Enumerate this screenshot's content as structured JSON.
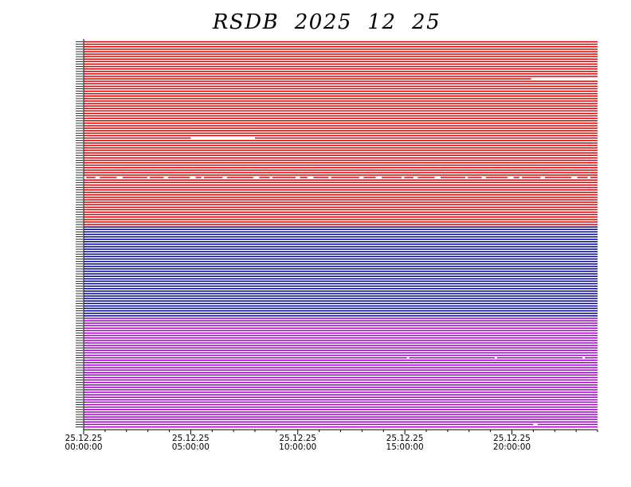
{
  "chart_data": {
    "type": "timeline",
    "title": "RSDB  2025  12  25",
    "xlabel": "",
    "ylabel": "",
    "x_range": [
      "25.12.25 00:00:00",
      "25.12.25 24:00:00"
    ],
    "x_ticks": [
      {
        "date": "25.12.25",
        "time": "00:00:00",
        "hour": 0
      },
      {
        "date": "25.12.25",
        "time": "05:00:00",
        "hour": 5
      },
      {
        "date": "25.12.25",
        "time": "10:00:00",
        "hour": 10
      },
      {
        "date": "25.12.25",
        "time": "15:00:00",
        "hour": 15
      },
      {
        "date": "25.12.25",
        "time": "20:00:00",
        "hour": 20
      }
    ],
    "groups": [
      {
        "color": "#e00000",
        "rows": 75
      },
      {
        "color": "#00009a",
        "rows": 37
      },
      {
        "color": "#a000c8",
        "rows": 45
      }
    ],
    "gaps": [
      {
        "row": 15,
        "start_hour": 20.9,
        "end_hour": 24.0
      },
      {
        "row": 39,
        "start_hour": 5.0,
        "end_hour": 8.0
      },
      {
        "row": 55,
        "start_hour": 0.0,
        "end_hour": 24.0,
        "intermittent": true
      },
      {
        "row": 128,
        "start_hour": 15.1,
        "end_hour": 15.2
      },
      {
        "row": 128,
        "start_hour": 19.2,
        "end_hour": 19.3
      },
      {
        "row": 128,
        "start_hour": 23.3,
        "end_hour": 23.4
      },
      {
        "row": 155,
        "start_hour": 21.0,
        "end_hour": 21.2
      }
    ]
  }
}
